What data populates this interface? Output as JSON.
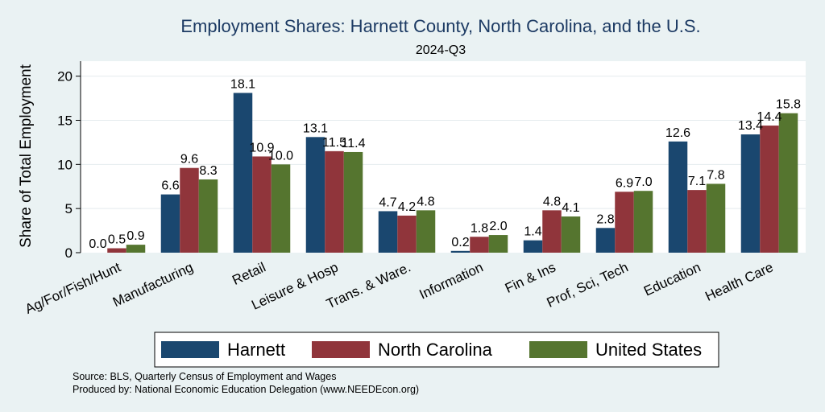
{
  "chart_data": {
    "type": "bar",
    "title": "Employment Shares: Harnett County, North Carolina, and the U.S.",
    "subtitle": "2024-Q3",
    "ylabel": "Share of Total Employment",
    "xlabel": "",
    "ylim": [
      0,
      21.7
    ],
    "yticks": [
      0,
      5,
      10,
      15,
      20
    ],
    "grid": true,
    "legend_position": "bottom",
    "categories": [
      "Ag/For/Fish/Hunt",
      "Manufacturing",
      "Retail",
      "Leisure & Hosp",
      "Trans. & Ware.",
      "Information",
      "Fin & Ins",
      "Prof, Sci, Tech",
      "Education",
      "Health Care"
    ],
    "series": [
      {
        "name": "Harnett",
        "color": "#1a476f",
        "values": [
          0.0,
          6.6,
          18.1,
          13.1,
          4.7,
          0.2,
          1.4,
          2.8,
          12.6,
          13.4
        ],
        "labels": [
          "0.0",
          "6.6",
          "18.1",
          "13.1",
          "4.7",
          "0.2",
          "1.4",
          "2.8",
          "12.6",
          "13.4"
        ]
      },
      {
        "name": "North Carolina",
        "color": "#90353b",
        "values": [
          0.5,
          9.6,
          10.9,
          11.5,
          4.2,
          1.8,
          4.8,
          6.9,
          7.1,
          14.4
        ],
        "labels": [
          "0.5",
          "9.6",
          "10.9",
          "11.5",
          "4.2",
          "1.8",
          "4.8",
          "6.9",
          "7.1",
          "14.4"
        ]
      },
      {
        "name": "United States",
        "color": "#55752f",
        "values": [
          0.9,
          8.3,
          10.0,
          11.4,
          4.8,
          2.0,
          4.1,
          7.0,
          7.8,
          15.8
        ],
        "labels": [
          "0.9",
          "8.3",
          "10.0",
          "11.4",
          "4.8",
          "2.0",
          "4.1",
          "7.0",
          "7.8",
          "15.8"
        ]
      }
    ]
  },
  "footer": {
    "source": "Source: BLS, Quarterly Census of Employment and Wages",
    "produced_by": "Produced by: National Economic Education Delegation (www.NEEDEcon.org)"
  }
}
